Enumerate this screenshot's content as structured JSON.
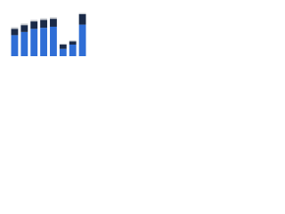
{
  "chart_data": {
    "type": "stacked_bar",
    "categories": [
      null,
      null,
      null,
      null,
      null,
      null,
      null,
      null
    ],
    "series": [
      {
        "color": "#2f6ed6",
        "values": [
          40,
          46,
          52,
          54,
          56,
          14,
          22,
          60
        ]
      },
      {
        "color": "#1a2a48",
        "values": [
          12,
          13,
          14,
          15,
          15,
          8,
          6,
          20
        ]
      },
      {
        "color": "#c9ccd1",
        "values": [
          3,
          3,
          3,
          3,
          3,
          2,
          2,
          2
        ]
      }
    ],
    "ylim": [
      0,
      100
    ]
  }
}
